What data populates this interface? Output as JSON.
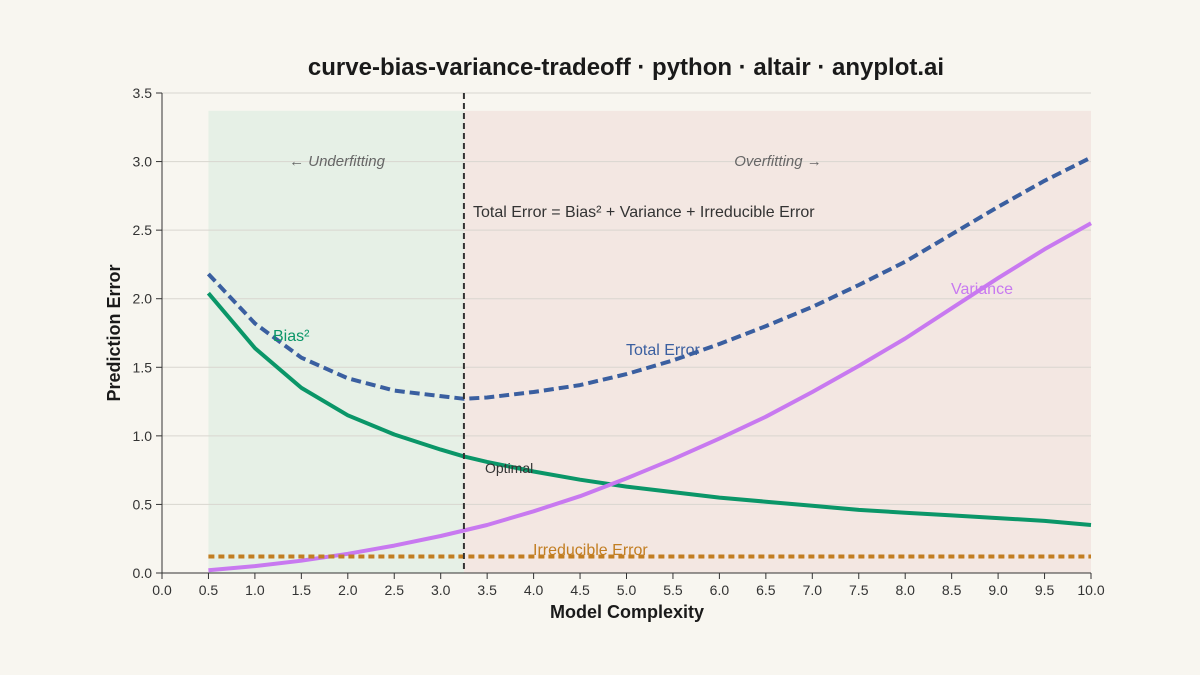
{
  "chart_data": {
    "type": "line",
    "title": "curve-bias-variance-tradeoff · python · altair · anyplot.ai",
    "xlabel": "Model Complexity",
    "ylabel": "Prediction Error",
    "xlim": [
      0,
      10
    ],
    "ylim": [
      0,
      3.5
    ],
    "x_ticks": [
      "0.0",
      "0.5",
      "1.0",
      "1.5",
      "2.0",
      "2.5",
      "3.0",
      "3.5",
      "4.0",
      "4.5",
      "5.0",
      "5.5",
      "6.0",
      "6.5",
      "7.0",
      "7.5",
      "8.0",
      "8.5",
      "9.0",
      "9.5",
      "10.0"
    ],
    "y_ticks": [
      "0.0",
      "0.5",
      "1.0",
      "1.5",
      "2.0",
      "2.5",
      "3.0",
      "3.5"
    ],
    "grid": "horizontal",
    "series": [
      {
        "name": "Bias²",
        "color": "#0a9668",
        "style": "solid",
        "x": [
          0.5,
          1.0,
          1.5,
          2.0,
          2.5,
          3.0,
          3.25,
          3.5,
          4.0,
          4.5,
          5.0,
          5.5,
          6.0,
          6.5,
          7.0,
          7.5,
          8.0,
          8.5,
          9.0,
          9.5,
          10.0
        ],
        "y": [
          2.04,
          1.64,
          1.35,
          1.15,
          1.01,
          0.9,
          0.85,
          0.81,
          0.74,
          0.68,
          0.63,
          0.59,
          0.55,
          0.52,
          0.49,
          0.46,
          0.44,
          0.42,
          0.4,
          0.38,
          0.35
        ]
      },
      {
        "name": "Variance",
        "color": "#c879f0",
        "style": "solid",
        "x": [
          0.5,
          1.0,
          1.5,
          2.0,
          2.5,
          3.0,
          3.25,
          3.5,
          4.0,
          4.5,
          5.0,
          5.5,
          6.0,
          6.5,
          7.0,
          7.5,
          8.0,
          8.5,
          9.0,
          9.5,
          10.0
        ],
        "y": [
          0.02,
          0.05,
          0.09,
          0.14,
          0.2,
          0.27,
          0.31,
          0.35,
          0.45,
          0.56,
          0.69,
          0.83,
          0.98,
          1.14,
          1.32,
          1.51,
          1.71,
          1.93,
          2.15,
          2.36,
          2.55
        ]
      },
      {
        "name": "Total Error",
        "color": "#3a5fa0",
        "style": "dashed",
        "x": [
          0.5,
          1.0,
          1.5,
          2.0,
          2.5,
          3.0,
          3.25,
          3.5,
          4.0,
          4.5,
          5.0,
          5.5,
          6.0,
          6.5,
          7.0,
          7.5,
          8.0,
          8.5,
          9.0,
          9.5,
          10.0
        ],
        "y": [
          2.18,
          1.82,
          1.57,
          1.42,
          1.33,
          1.29,
          1.27,
          1.28,
          1.32,
          1.37,
          1.45,
          1.55,
          1.67,
          1.8,
          1.94,
          2.1,
          2.27,
          2.47,
          2.67,
          2.86,
          3.03
        ]
      },
      {
        "name": "Irreducible Error",
        "color": "#c27e22",
        "style": "dotted",
        "x": [
          0.5,
          10.0
        ],
        "y": [
          0.12,
          0.12
        ]
      }
    ],
    "regions": [
      {
        "label": "← Underfitting",
        "x0": 0.5,
        "x1": 3.25,
        "color": "#e6f0e6"
      },
      {
        "label": "Overfitting →",
        "x0": 3.25,
        "x1": 10.0,
        "color": "#f3e7e2"
      }
    ],
    "optimal": {
      "x": 3.25,
      "label": "Optimal"
    },
    "formula": "Total Error = Bias² + Variance + Irreducible Error"
  }
}
